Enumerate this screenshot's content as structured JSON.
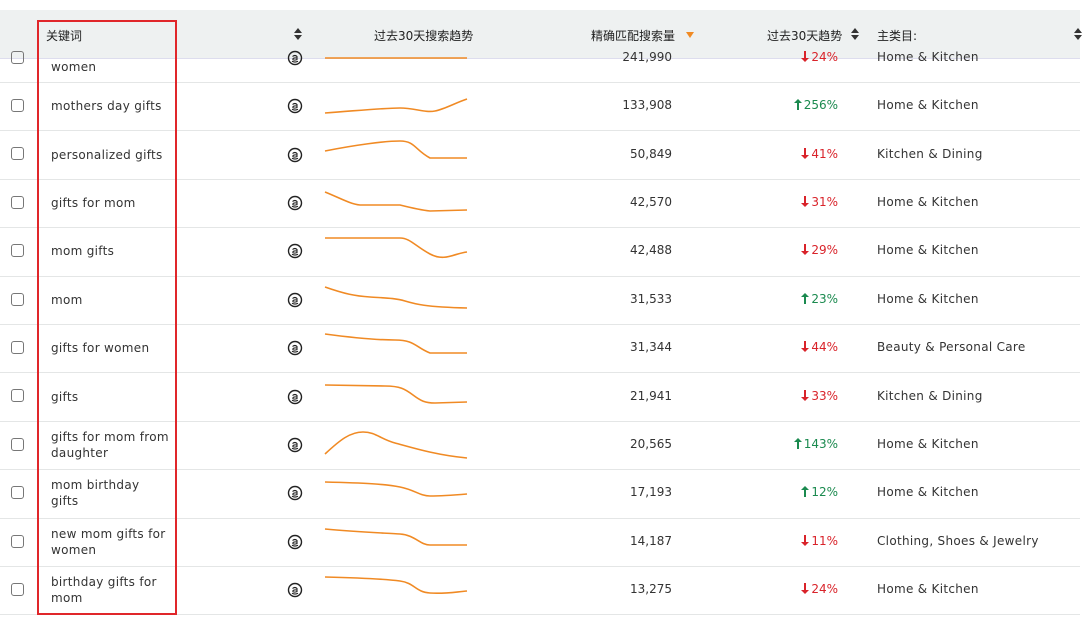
{
  "header": {
    "columns": [
      "关键词",
      "过去30天搜索趋势",
      "精确匹配搜索量",
      "过去30天趋势",
      "主类目:"
    ]
  },
  "rows": [
    {
      "keyword": "women",
      "volume": "241,990",
      "trend": "24%",
      "trend_dir": "down",
      "category": "Home & Kitchen"
    },
    {
      "keyword": "mothers day gifts",
      "volume": "133,908",
      "trend": "256%",
      "trend_dir": "up",
      "category": "Home & Kitchen"
    },
    {
      "keyword": "personalized gifts",
      "volume": "50,849",
      "trend": "41%",
      "trend_dir": "down",
      "category": "Kitchen & Dining"
    },
    {
      "keyword": "gifts for mom",
      "volume": "42,570",
      "trend": "31%",
      "trend_dir": "down",
      "category": "Home & Kitchen"
    },
    {
      "keyword": "mom gifts",
      "volume": "42,488",
      "trend": "29%",
      "trend_dir": "down",
      "category": "Home & Kitchen"
    },
    {
      "keyword": "mom",
      "volume": "31,533",
      "trend": "23%",
      "trend_dir": "up",
      "category": "Home & Kitchen"
    },
    {
      "keyword": "gifts for women",
      "volume": "31,344",
      "trend": "44%",
      "trend_dir": "down",
      "category": "Beauty & Personal Care"
    },
    {
      "keyword": "gifts",
      "volume": "21,941",
      "trend": "33%",
      "trend_dir": "down",
      "category": "Kitchen & Dining"
    },
    {
      "keyword": "gifts for mom from daughter",
      "volume": "20,565",
      "trend": "143%",
      "trend_dir": "up",
      "category": "Home & Kitchen"
    },
    {
      "keyword": "mom birthday gifts",
      "volume": "17,193",
      "trend": "12%",
      "trend_dir": "up",
      "category": "Home & Kitchen"
    },
    {
      "keyword": "new mom gifts for women",
      "volume": "14,187",
      "trend": "11%",
      "trend_dir": "down",
      "category": "Clothing, Shoes & Jewelry"
    },
    {
      "keyword": "birthday gifts for mom",
      "volume": "13,275",
      "trend": "24%",
      "trend_dir": "down",
      "category": "Home & Kitchen"
    }
  ]
}
